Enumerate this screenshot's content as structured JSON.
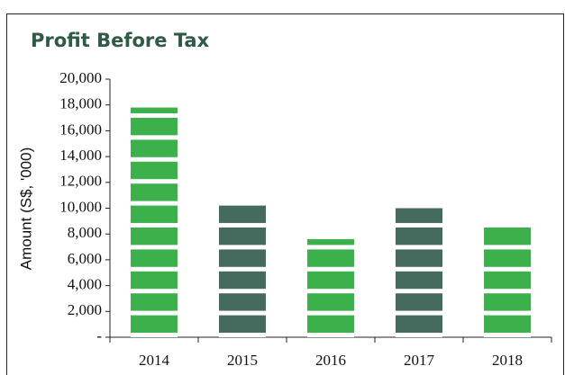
{
  "chart_data": {
    "type": "bar",
    "title": "Profit Before Tax",
    "y_label": "Amount (S$, '000)",
    "categories": [
      "2014",
      "2015",
      "2016",
      "2017",
      "2018"
    ],
    "values": [
      17800,
      10500,
      7600,
      10000,
      8800
    ],
    "colors": [
      "#3cb04a",
      "#456b5e",
      "#3cb04a",
      "#456b5e",
      "#3cb04a"
    ],
    "ylim": [
      0,
      20000
    ],
    "yticks": [
      {
        "value": 0,
        "label": "-"
      },
      {
        "value": 2000,
        "label": "2,000"
      },
      {
        "value": 4000,
        "label": "4,000"
      },
      {
        "value": 6000,
        "label": "6,000"
      },
      {
        "value": 8000,
        "label": "8,000"
      },
      {
        "value": 10000,
        "label": "10,000"
      },
      {
        "value": 12000,
        "label": "12,000"
      },
      {
        "value": 14000,
        "label": "14,000"
      },
      {
        "value": 16000,
        "label": "16,000"
      },
      {
        "value": 18000,
        "label": "18,000"
      },
      {
        "value": 20000,
        "label": "20,000"
      }
    ]
  }
}
